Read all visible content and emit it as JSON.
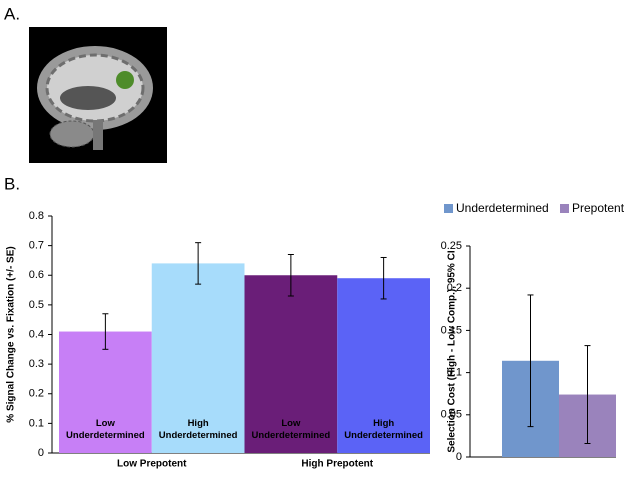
{
  "panel_labels": [
    "A.",
    "B."
  ],
  "chart_data": [
    {
      "type": "bar",
      "y_label": "% Signal Change vs. Fixation (+/- SE)",
      "categories": [
        "Low Underdetermined",
        "High Underdetermined",
        "Low Underdetermined",
        "High Underdetermined"
      ],
      "group_labels": [
        "Low Prepotent",
        "High Prepotent"
      ],
      "values": [
        0.41,
        0.64,
        0.6,
        0.59
      ],
      "errors": [
        0.06,
        0.07,
        0.07,
        0.07
      ],
      "colors": [
        "#c77ff6",
        "#a7dcfb",
        "#6a1e78",
        "#5b63f6"
      ],
      "ylim": [
        0,
        0.8
      ],
      "yticks": [
        0,
        0.1,
        0.2,
        0.3,
        0.4,
        0.5,
        0.6,
        0.7,
        0.8
      ]
    },
    {
      "type": "grouped-bar",
      "y_label": "Selection Cost (High - Low Comp.), 95% CI",
      "series": [
        {
          "name": "Underdetermined",
          "color": "#7096cc",
          "values": [
            0.114
          ],
          "errors": [
            0.078
          ]
        },
        {
          "name": "Prepotent",
          "color": "#9a83bc",
          "values": [
            0.074
          ],
          "errors": [
            0.058
          ]
        }
      ],
      "ylim": [
        0,
        0.25
      ],
      "yticks": [
        0,
        0.05,
        0.1,
        0.15,
        0.2,
        0.25
      ],
      "legend": "top"
    }
  ]
}
